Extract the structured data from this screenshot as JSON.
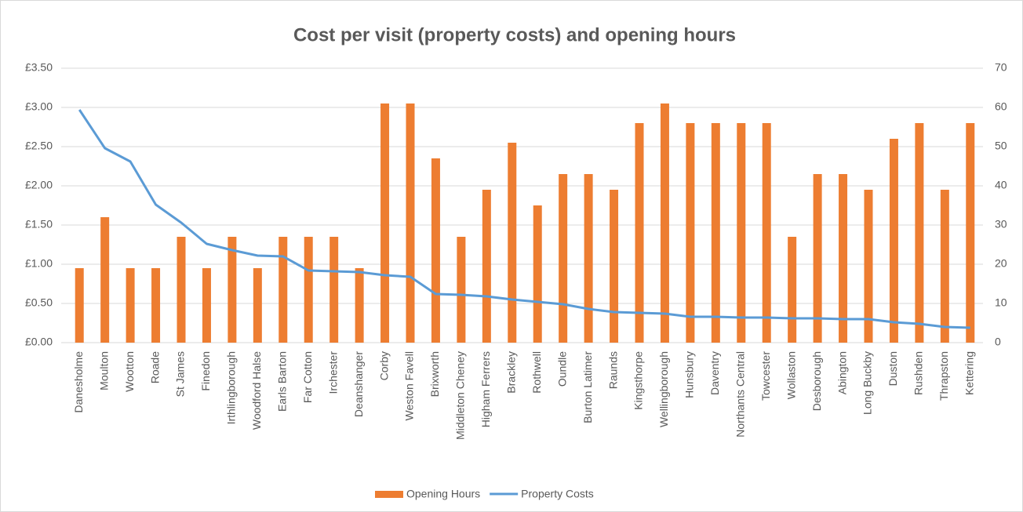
{
  "chart_data": {
    "type": "bar_line",
    "title": "Cost per visit (property costs) and opening hours",
    "categories": [
      "Danesholme",
      "Moulton",
      "Wootton",
      "Roade",
      "St James",
      "Finedon",
      "Irthlingborough",
      "Woodford Halse",
      "Earls Barton",
      "Far Cotton",
      "Irchester",
      "Deanshanger",
      "Corby",
      "Weston Favell",
      "Brixworth",
      "Middleton Cheney",
      "Higham Ferrers",
      "Brackley",
      "Rothwell",
      "Oundle",
      "Burton Latimer",
      "Raunds",
      "Kingsthorpe",
      "Wellingborough",
      "Hunsbury",
      "Daventry",
      "Northants Central",
      "Towcester",
      "Wollaston",
      "Desborough",
      "Abington",
      "Long Buckby",
      "Duston",
      "Rushden",
      "Thrapston",
      "Kettering"
    ],
    "series": [
      {
        "name": "Opening Hours",
        "type": "bar",
        "axis": "y2",
        "color": "#ed7d31",
        "values": [
          19,
          32,
          19,
          19,
          27,
          19,
          27,
          19,
          27,
          27,
          27,
          19,
          61,
          61,
          47,
          27,
          39,
          51,
          35,
          43,
          43,
          39,
          56,
          61,
          56,
          56,
          56,
          56,
          27,
          43,
          43,
          39,
          52,
          56,
          39,
          56
        ]
      },
      {
        "name": "Property Costs",
        "type": "line",
        "axis": "y",
        "color": "#5b9bd5",
        "values": [
          2.97,
          2.48,
          2.31,
          1.76,
          1.53,
          1.26,
          1.18,
          1.11,
          1.1,
          0.92,
          0.91,
          0.9,
          0.86,
          0.84,
          0.62,
          0.61,
          0.59,
          0.55,
          0.52,
          0.49,
          0.43,
          0.39,
          0.38,
          0.37,
          0.33,
          0.33,
          0.32,
          0.32,
          0.31,
          0.31,
          0.3,
          0.3,
          0.26,
          0.24,
          0.2,
          0.19
        ]
      }
    ],
    "ylim": [
      0,
      3.5
    ],
    "yticks": [
      {
        "value": 0,
        "label": "£0.00"
      },
      {
        "value": 0.5,
        "label": "£0.50"
      },
      {
        "value": 1,
        "label": "£1.00"
      },
      {
        "value": 1.5,
        "label": "£1.50"
      },
      {
        "value": 2,
        "label": "£2.00"
      },
      {
        "value": 2.5,
        "label": "£2.50"
      },
      {
        "value": 3,
        "label": "£3.00"
      },
      {
        "value": 3.5,
        "label": "£3.50"
      }
    ],
    "y2lim": [
      0,
      70
    ],
    "y2ticks": [
      0,
      10,
      20,
      30,
      40,
      50,
      60,
      70
    ],
    "grid": true,
    "legend": "bottom"
  }
}
